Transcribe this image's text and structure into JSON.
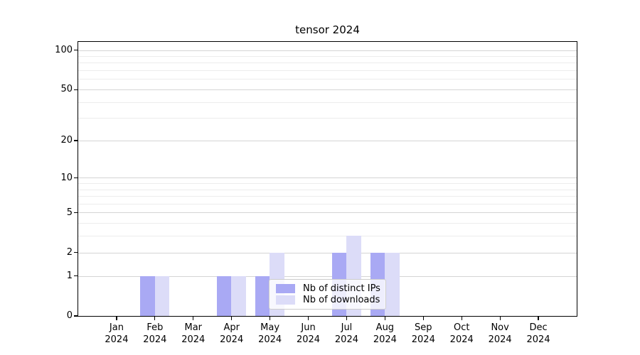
{
  "title": "tensor 2024",
  "legend": {
    "items": [
      {
        "label": "Nb of distinct IPs",
        "color": "#a9a9f4"
      },
      {
        "label": "Nb of downloads",
        "color": "#dcdcf8"
      }
    ]
  },
  "x_axis": {
    "months": [
      "Jan",
      "Feb",
      "Mar",
      "Apr",
      "May",
      "Jun",
      "Jul",
      "Aug",
      "Sep",
      "Oct",
      "Nov",
      "Dec"
    ],
    "year": "2024"
  },
  "y_axis": {
    "major_ticks": [
      0,
      1,
      2,
      5,
      10,
      20,
      50,
      100
    ],
    "minor_ticks": [
      3,
      4,
      6,
      7,
      8,
      9,
      30,
      40,
      60,
      70,
      80,
      90
    ]
  },
  "chart_data": {
    "type": "bar",
    "title": "tensor 2024",
    "categories": [
      "Jan 2024",
      "Feb 2024",
      "Mar 2024",
      "Apr 2024",
      "May 2024",
      "Jun 2024",
      "Jul 2024",
      "Aug 2024",
      "Sep 2024",
      "Oct 2024",
      "Nov 2024",
      "Dec 2024"
    ],
    "series": [
      {
        "name": "Nb of distinct IPs",
        "color": "#a9a9f4",
        "values": [
          0,
          1,
          0,
          1,
          1,
          0,
          2,
          2,
          0,
          0,
          0,
          0
        ]
      },
      {
        "name": "Nb of downloads",
        "color": "#dcdcf8",
        "values": [
          0,
          1,
          0,
          1,
          2,
          0,
          3,
          2,
          0,
          0,
          0,
          0
        ]
      }
    ],
    "xlabel": "",
    "ylabel": "",
    "yscale": "log1p",
    "ylim": [
      0,
      115
    ],
    "yticks": [
      0,
      1,
      2,
      5,
      10,
      20,
      50,
      100
    ],
    "minor_yticks": [
      3,
      4,
      6,
      7,
      8,
      9,
      30,
      40,
      60,
      70,
      80,
      90
    ],
    "grid": true,
    "legend_position": "lower center"
  },
  "colors": {
    "grid_major": "#d4d4d4",
    "grid_minor": "#ececec",
    "spine": "#000000",
    "text": "#000000",
    "legend_border": "#cccccc",
    "background": "#ffffff"
  }
}
